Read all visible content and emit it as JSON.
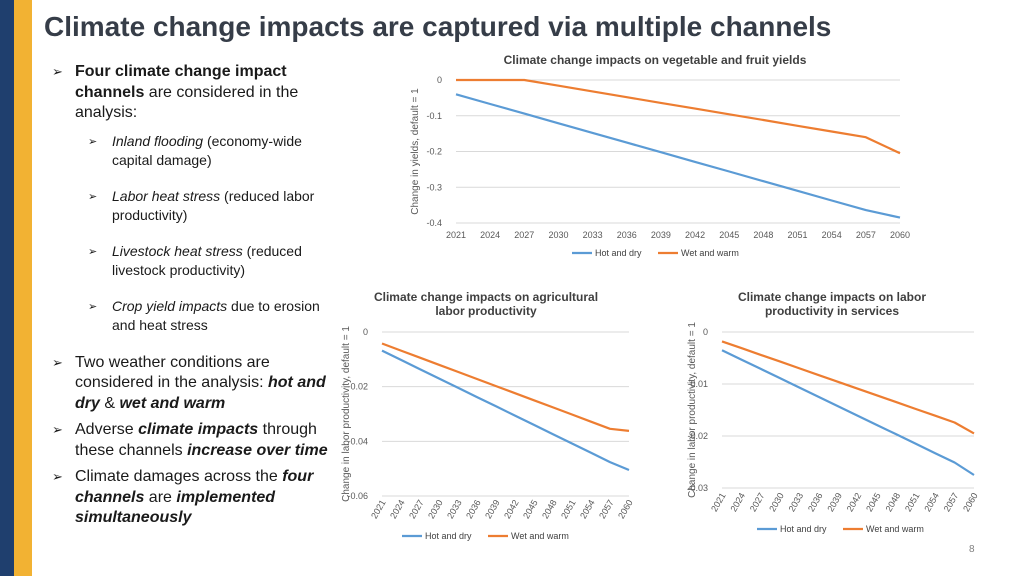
{
  "title": "Climate change impacts are captured via multiple channels",
  "bullets": {
    "b1_bold": "Four climate change impact channels",
    "b1_rest": " are considered in the analysis:",
    "subs": [
      {
        "italic": "Inland flooding",
        "rest": " (economy-wide capital damage)"
      },
      {
        "italic": "Labor heat stress",
        "rest": " (reduced labor productivity)"
      },
      {
        "italic": "Livestock heat stress",
        "rest": " (reduced livestock productivity)"
      },
      {
        "italic": "Crop yield impacts",
        "rest": " due to erosion and heat stress"
      }
    ],
    "b2_a": "Two weather conditions are considered in the analysis: ",
    "b2_hot": "hot and dry",
    "b2_amp": " & ",
    "b2_wet": "wet and warm",
    "b3_a": "Adverse ",
    "b3_bold": "climate impacts",
    "b3_b": " through these channels ",
    "b3_bi": "increase over time",
    "b4_a": "Climate damages across the ",
    "b4_bi1": "four channels",
    "b4_b": " are ",
    "b4_bi2": "implemented simultaneously"
  },
  "page_number": "8",
  "colors": {
    "hot_and_dry": "#5b9bd5",
    "wet_and_warm": "#ed7d31"
  },
  "chart_data": [
    {
      "type": "line",
      "title": "Climate change impacts on vegetable and fruit yields",
      "xlabel": "",
      "ylabel": "Change in yields, default = 1",
      "categories": [
        "2021",
        "2024",
        "2027",
        "2030",
        "2033",
        "2036",
        "2039",
        "2042",
        "2045",
        "2048",
        "2051",
        "2054",
        "2057",
        "2060"
      ],
      "ylim": [
        -0.4,
        0
      ],
      "yticks": [
        {
          "v": 0,
          "label": "0"
        },
        {
          "v": -0.1,
          "label": "-0.1"
        },
        {
          "v": -0.2,
          "label": "-0.2"
        },
        {
          "v": -0.3,
          "label": "-0.3"
        },
        {
          "v": -0.4,
          "label": "-0.4"
        }
      ],
      "grid": true,
      "legend": "bottom",
      "series": [
        {
          "name": "Hot and dry",
          "values": [
            -0.04,
            -0.067,
            -0.094,
            -0.121,
            -0.148,
            -0.175,
            -0.202,
            -0.229,
            -0.256,
            -0.283,
            -0.31,
            -0.337,
            -0.364,
            -0.385
          ]
        },
        {
          "name": "Wet and warm",
          "values": [
            0,
            0,
            0,
            -0.016,
            -0.032,
            -0.048,
            -0.064,
            -0.08,
            -0.096,
            -0.112,
            -0.128,
            -0.144,
            -0.16,
            -0.205
          ]
        }
      ]
    },
    {
      "type": "line",
      "title": "Climate change impacts on agricultural labor productivity",
      "xlabel": "",
      "ylabel": "Change in labor productivity, default = 1",
      "categories": [
        "2021",
        "2024",
        "2027",
        "2030",
        "2033",
        "2036",
        "2039",
        "2042",
        "2045",
        "2048",
        "2051",
        "2054",
        "2057",
        "2060"
      ],
      "ylim": [
        -0.06,
        0
      ],
      "yticks": [
        {
          "v": 0,
          "label": "0"
        },
        {
          "v": -0.02,
          "label": "-0.02"
        },
        {
          "v": -0.04,
          "label": "-0.04"
        },
        {
          "v": -0.06,
          "label": "-0.06"
        }
      ],
      "grid": true,
      "legend": "bottom",
      "series": [
        {
          "name": "Hot and dry",
          "values": [
            -0.0068,
            -0.0102,
            -0.0136,
            -0.017,
            -0.0204,
            -0.0238,
            -0.0272,
            -0.0306,
            -0.034,
            -0.0374,
            -0.0408,
            -0.0442,
            -0.0476,
            -0.0505
          ]
        },
        {
          "name": "Wet and warm",
          "values": [
            -0.0042,
            -0.0068,
            -0.0094,
            -0.012,
            -0.0146,
            -0.0172,
            -0.0198,
            -0.0224,
            -0.025,
            -0.0276,
            -0.0302,
            -0.0328,
            -0.0354,
            -0.0362
          ]
        }
      ]
    },
    {
      "type": "line",
      "title": "Climate change impacts on labor productivity in services",
      "xlabel": "",
      "ylabel": "Change in labor productivity, default = 1",
      "categories": [
        "2021",
        "2024",
        "2027",
        "2030",
        "2033",
        "2036",
        "2039",
        "2042",
        "2045",
        "2048",
        "2051",
        "2054",
        "2057",
        "2060"
      ],
      "ylim": [
        -0.03,
        0
      ],
      "yticks": [
        {
          "v": 0,
          "label": "0"
        },
        {
          "v": -0.01,
          "label": "-0.01"
        },
        {
          "v": -0.02,
          "label": "-0.02"
        },
        {
          "v": -0.03,
          "label": "-0.03"
        }
      ],
      "grid": true,
      "legend": "bottom",
      "series": [
        {
          "name": "Hot and dry",
          "values": [
            -0.0035,
            -0.0053,
            -0.0071,
            -0.0089,
            -0.0107,
            -0.0125,
            -0.0143,
            -0.0161,
            -0.0179,
            -0.0197,
            -0.0215,
            -0.0233,
            -0.0251,
            -0.0275
          ]
        },
        {
          "name": "Wet and warm",
          "values": [
            -0.0018,
            -0.0031,
            -0.0044,
            -0.0057,
            -0.007,
            -0.0083,
            -0.0096,
            -0.0109,
            -0.0122,
            -0.0135,
            -0.0148,
            -0.0161,
            -0.0174,
            -0.0195
          ]
        }
      ]
    }
  ]
}
